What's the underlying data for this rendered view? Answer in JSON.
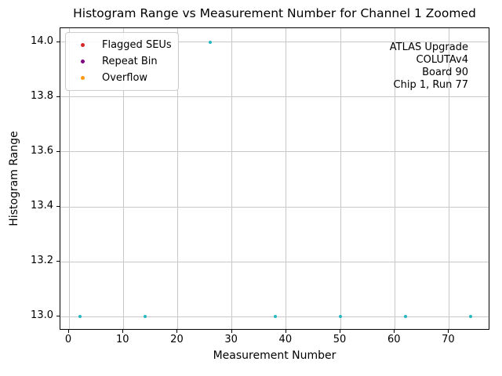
{
  "chart_data": {
    "type": "scatter",
    "title": "Histogram Range vs Measurement Number for Channel 1 Zoomed",
    "xlabel": "Measurement Number",
    "ylabel": "Histogram Range",
    "xlim": [
      -1.6,
      77.6
    ],
    "ylim": [
      12.95,
      14.05
    ],
    "xticks": [
      0,
      10,
      20,
      30,
      40,
      50,
      60,
      70
    ],
    "xtick_labels": [
      "0",
      "10",
      "20",
      "30",
      "40",
      "50",
      "60",
      "70"
    ],
    "yticks": [
      13.0,
      13.2,
      13.4,
      13.6,
      13.8,
      14.0
    ],
    "ytick_labels": [
      "13.0",
      "13.2",
      "13.4",
      "13.6",
      "13.8",
      "14.0"
    ],
    "grid": true,
    "grid_color": "#c8c8c8",
    "spine_color": "#000000",
    "series": [
      {
        "name": "Histogram Range",
        "marker": "circle",
        "color": "#26b6be",
        "x": [
          2,
          14,
          26,
          38,
          50,
          62,
          74
        ],
        "y": [
          13.0,
          13.0,
          14.0,
          13.0,
          13.0,
          13.0,
          13.0
        ]
      }
    ],
    "legend": {
      "position": "upper left",
      "entries": [
        {
          "label": "Flagged SEUs",
          "color": "#d62728"
        },
        {
          "label": "Repeat Bin",
          "color": "#800080"
        },
        {
          "label": "Overflow",
          "color": "#ff9913"
        }
      ]
    },
    "annotation": {
      "align": "right",
      "lines": [
        "ATLAS Upgrade",
        "COLUTAv4",
        "Board 90",
        "Chip 1, Run 77"
      ]
    }
  }
}
